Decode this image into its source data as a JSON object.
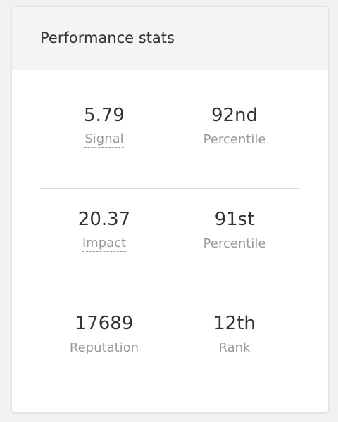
{
  "card": {
    "title": "Performance stats"
  },
  "stats": [
    {
      "left": {
        "value": "5.79",
        "label": "Signal"
      },
      "right": {
        "value": "92nd",
        "label": "Percentile"
      }
    },
    {
      "left": {
        "value": "20.37",
        "label": "Impact"
      },
      "right": {
        "value": "91st",
        "label": "Percentile"
      }
    },
    {
      "left": {
        "value": "17689",
        "label": "Reputation"
      },
      "right": {
        "value": "12th",
        "label": "Rank"
      }
    }
  ]
}
